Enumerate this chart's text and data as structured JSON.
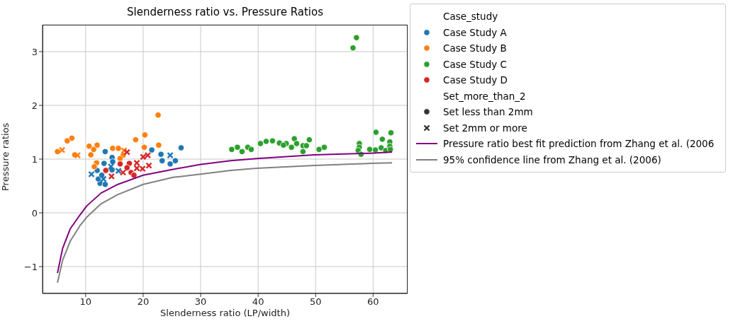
{
  "chart_data": {
    "type": "scatter",
    "title": "Slenderness ratio vs. Pressure Ratios",
    "xlabel": "Slenderness ratio (LP/width)",
    "ylabel": "Pressure ratios",
    "legend_title": "Case_study",
    "annotations": [
      "Set_more_than_2"
    ],
    "xlim": [
      2.5,
      66
    ],
    "ylim": [
      -1.5,
      3.5
    ],
    "xticks": [
      10,
      20,
      30,
      40,
      50,
      60
    ],
    "yticks": [
      -1,
      0,
      1,
      2,
      3
    ],
    "grid": true,
    "legend": "right",
    "series": [
      {
        "name": "Case Study A",
        "color": "#1f77b4",
        "marker": "circle",
        "x": [
          13.4,
          13.2,
          12.0,
          12.5,
          13.4,
          12.2,
          14.6,
          14.7,
          21.5,
          26.6,
          23.1,
          23.3,
          24.7,
          25.6,
          12.8,
          14.6
        ],
        "values": [
          1.14,
          0.92,
          0.79,
          0.55,
          0.53,
          0.63,
          1.03,
          0.95,
          1.17,
          1.21,
          1.09,
          0.97,
          0.91,
          0.97,
          0.7,
          0.8
        ]
      },
      {
        "color": "#1f77b4",
        "marker": "cross",
        "x": [
          11.0,
          13.1,
          14.4,
          15.7,
          24.7
        ],
        "values": [
          0.72,
          0.63,
          0.86,
          0.78,
          1.07
        ]
      },
      {
        "name": "Case Study B",
        "color": "#ff7f0e",
        "marker": "circle",
        "x": [
          5.1,
          6.8,
          7.6,
          8.1,
          10.6,
          12.0,
          11.4,
          10.9,
          11.9,
          11.5,
          14.7,
          15.7,
          16.5,
          16.0,
          18.7,
          22.6,
          20.3,
          20.2,
          22.7
        ],
        "values": [
          1.14,
          1.34,
          1.39,
          1.08,
          1.24,
          1.26,
          1.18,
          1.08,
          0.93,
          0.86,
          1.2,
          1.2,
          1.07,
          1.01,
          1.36,
          1.82,
          1.45,
          1.22,
          1.26
        ]
      },
      {
        "color": "#ff7f0e",
        "marker": "cross",
        "x": [
          5.9,
          8.6,
          16.7
        ],
        "values": [
          1.17,
          1.07,
          1.16
        ]
      },
      {
        "name": "Case Study C",
        "color": "#2ca02c",
        "marker": "circle",
        "x": [
          57.1,
          56.5,
          35.4,
          36.4,
          37.2,
          38.2,
          38.8,
          40.4,
          41.4,
          42.5,
          43.7,
          44.9,
          44.4,
          46.3,
          46.7,
          45.8,
          47.8,
          47.8,
          48.4,
          48.9,
          50.6,
          51.5,
          57.6,
          57.6,
          57.4,
          57.9,
          59.4,
          60.4,
          61.4,
          60.5,
          61.6,
          63.1,
          62.9,
          62.9,
          62.2,
          63.0
        ],
        "values": [
          3.26,
          3.07,
          1.18,
          1.22,
          1.14,
          1.22,
          1.18,
          1.29,
          1.33,
          1.34,
          1.3,
          1.29,
          1.26,
          1.38,
          1.29,
          1.22,
          1.25,
          1.14,
          1.25,
          1.36,
          1.18,
          1.22,
          1.29,
          1.22,
          1.16,
          1.09,
          1.18,
          1.17,
          1.21,
          1.5,
          1.37,
          1.49,
          1.32,
          1.24,
          1.16,
          1.18
        ]
      },
      {
        "name": "Case Study D",
        "color": "#d62728",
        "marker": "circle",
        "x": [
          13.5,
          16.0,
          17.6,
          17.2,
          17.9,
          18.4
        ],
        "values": [
          0.79,
          0.91,
          0.92,
          0.84,
          0.75,
          0.7
        ]
      },
      {
        "color": "#d62728",
        "marker": "cross",
        "x": [
          17.2,
          20.0,
          20.8,
          18.9,
          18.9,
          19.9,
          21.0,
          14.5,
          16.5
        ],
        "values": [
          1.13,
          1.04,
          1.07,
          0.93,
          0.83,
          0.82,
          0.88,
          0.68,
          0.75
        ]
      },
      {
        "name": "Set less than 2mm",
        "color": "#333333",
        "marker": "circle"
      },
      {
        "name": "Set 2mm or more",
        "color": "#333333",
        "marker": "cross"
      },
      {
        "name": "Pressure ratio best fit prediction from Zhang et al. (2006",
        "type": "line",
        "color": "#800080",
        "marker": "none",
        "line_style": "solid",
        "x": [
          5.1,
          6.0,
          7.3,
          9.0,
          10.2,
          12.7,
          15.6,
          20.0,
          25.2,
          30.0,
          35.2,
          39.7,
          49.7,
          59.5,
          63.3
        ],
        "values": [
          -1.12,
          -0.66,
          -0.3,
          -0.04,
          0.13,
          0.37,
          0.53,
          0.7,
          0.81,
          0.9,
          0.97,
          1.01,
          1.08,
          1.11,
          1.13
        ]
      },
      {
        "name": "95% confidence line from Zhang et al. (2006)",
        "type": "line",
        "color": "#808080",
        "marker": "none",
        "line_style": "solid",
        "x": [
          5.1,
          6.0,
          7.3,
          9.0,
          10.2,
          12.7,
          15.6,
          20.0,
          25.2,
          30.0,
          35.2,
          39.7,
          49.7,
          59.5,
          63.3
        ],
        "values": [
          -1.3,
          -0.88,
          -0.53,
          -0.24,
          -0.08,
          0.17,
          0.34,
          0.53,
          0.66,
          0.72,
          0.79,
          0.83,
          0.88,
          0.92,
          0.93
        ]
      }
    ]
  }
}
